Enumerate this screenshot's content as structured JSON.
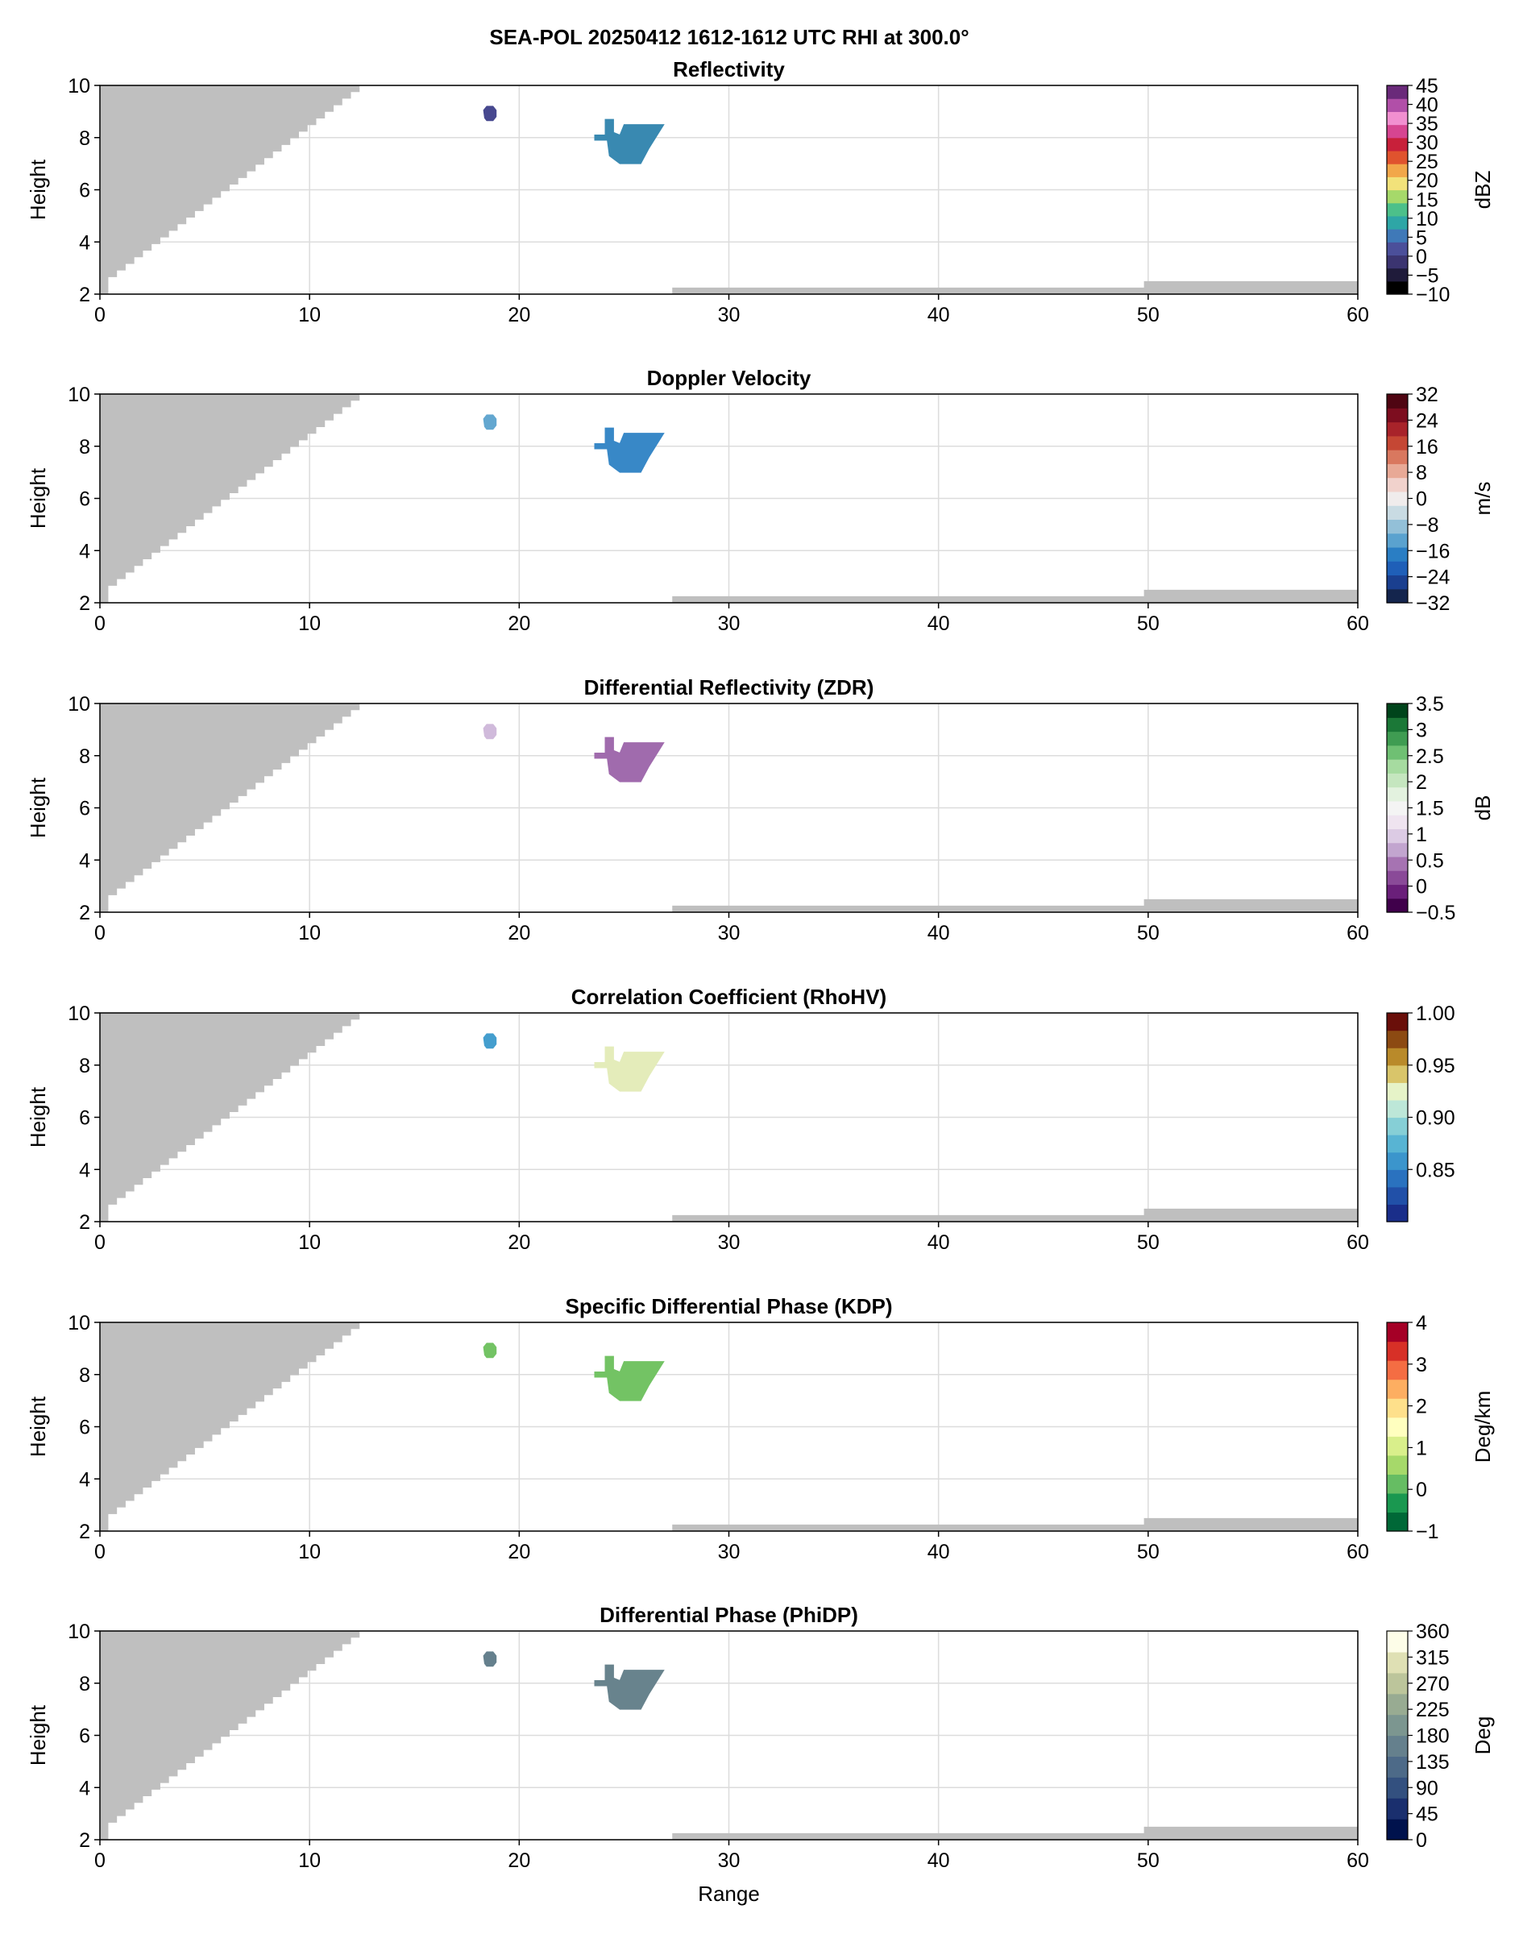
{
  "suptitle": "SEA-POL 20250412 1612-1612 UTC RHI at 300.0°",
  "xlabel": "Range",
  "chart_data": [
    {
      "type": "heatmap",
      "title": "Reflectivity",
      "ylabel": "Height",
      "xlabel": "",
      "xlim": [
        0,
        60
      ],
      "ylim": [
        2,
        10
      ],
      "xticks": [
        0,
        10,
        20,
        30,
        40,
        50,
        60
      ],
      "yticks": [
        2,
        4,
        6,
        8,
        10
      ],
      "grid": true,
      "colorbar": {
        "label": "dBZ",
        "range": [
          -10,
          45
        ],
        "ticks": [
          -10,
          -5,
          0,
          5,
          10,
          15,
          20,
          25,
          30,
          35,
          40,
          45
        ],
        "colors": [
          "#000000",
          "#1f1b3a",
          "#3b3470",
          "#4b4f9a",
          "#3f79b8",
          "#2ea6a6",
          "#4cc08a",
          "#a6d96a",
          "#f2e27a",
          "#f2a74a",
          "#e0532e",
          "#c8203a",
          "#d64591",
          "#f18fd0",
          "#b14fa8",
          "#6a2a7a"
        ]
      },
      "echoes": [
        {
          "x_range": [
            18.3,
            18.9
          ],
          "y_range": [
            8.6,
            9.2
          ],
          "value": 0
        },
        {
          "x_range": [
            23.6,
            27.0
          ],
          "y_range": [
            7.0,
            8.7
          ],
          "value": 6
        }
      ]
    },
    {
      "type": "heatmap",
      "title": "Doppler Velocity",
      "ylabel": "Height",
      "xlabel": "",
      "xlim": [
        0,
        60
      ],
      "ylim": [
        2,
        10
      ],
      "xticks": [
        0,
        10,
        20,
        30,
        40,
        50,
        60
      ],
      "yticks": [
        2,
        4,
        6,
        8,
        10
      ],
      "grid": true,
      "colorbar": {
        "label": "m/s",
        "range": [
          -32,
          32
        ],
        "ticks": [
          -32,
          -24,
          -16,
          -8,
          0,
          8,
          16,
          24,
          32
        ],
        "colors": [
          "#14254d",
          "#1a3f8f",
          "#1f5fb8",
          "#2a7ec4",
          "#5aa2cf",
          "#93c0d8",
          "#c9dbe3",
          "#f0ecec",
          "#f1d2cc",
          "#e8a996",
          "#d9785f",
          "#c54734",
          "#a8232a",
          "#7d0d1f",
          "#4f0512"
        ]
      },
      "echoes": [
        {
          "x_range": [
            18.3,
            18.9
          ],
          "y_range": [
            8.6,
            9.2
          ],
          "value": -13
        },
        {
          "x_range": [
            23.6,
            27.0
          ],
          "y_range": [
            7.0,
            8.7
          ],
          "value": -17
        }
      ]
    },
    {
      "type": "heatmap",
      "title": "Differential Reflectivity (ZDR)",
      "ylabel": "Height",
      "xlabel": "",
      "xlim": [
        0,
        60
      ],
      "ylim": [
        2,
        10
      ],
      "xticks": [
        0,
        10,
        20,
        30,
        40,
        50,
        60
      ],
      "yticks": [
        2,
        4,
        6,
        8,
        10
      ],
      "grid": true,
      "colorbar": {
        "label": "dB",
        "range": [
          -0.5,
          3.5
        ],
        "ticks": [
          -0.5,
          0.0,
          0.5,
          1.0,
          1.5,
          2.0,
          2.5,
          3.0,
          3.5
        ],
        "colors": [
          "#40004b",
          "#6a1f7a",
          "#8a4a98",
          "#a673b2",
          "#c2a5cf",
          "#dccbe4",
          "#efe4f0",
          "#f4f4f4",
          "#e3f2df",
          "#c5e6bf",
          "#a6dba0",
          "#6fc073",
          "#3f9c52",
          "#1b7837",
          "#00441b"
        ]
      },
      "echoes": [
        {
          "x_range": [
            18.3,
            18.9
          ],
          "y_range": [
            8.6,
            9.2
          ],
          "value": 0.8
        },
        {
          "x_range": [
            23.6,
            27.0
          ],
          "y_range": [
            7.0,
            8.7
          ],
          "value": 0.3
        }
      ]
    },
    {
      "type": "heatmap",
      "title": "Correlation Coefficient (RhoHV)",
      "ylabel": "Height",
      "xlabel": "",
      "xlim": [
        0,
        60
      ],
      "ylim": [
        2,
        10
      ],
      "xticks": [
        0,
        10,
        20,
        30,
        40,
        50,
        60
      ],
      "yticks": [
        2,
        4,
        6,
        8,
        10
      ],
      "grid": true,
      "colorbar": {
        "label": "",
        "range": [
          0.8,
          1.0
        ],
        "ticks": [
          0.85,
          0.9,
          0.95,
          1.0
        ],
        "tick_labels": [
          "0.85",
          "0.90",
          "0.95",
          "1.00"
        ],
        "colors": [
          "#1a2e8a",
          "#2150a8",
          "#2a72bf",
          "#3b95cc",
          "#58b4d3",
          "#86cfd6",
          "#bde7d8",
          "#e6f3c8",
          "#d9c56a",
          "#b98a2a",
          "#8c4a12",
          "#6a0f0a"
        ]
      },
      "echoes": [
        {
          "x_range": [
            18.3,
            18.9
          ],
          "y_range": [
            8.6,
            9.2
          ],
          "value": 0.86
        },
        {
          "x_range": [
            23.6,
            27.0
          ],
          "y_range": [
            7.0,
            8.7
          ],
          "value": 0.93
        }
      ]
    },
    {
      "type": "heatmap",
      "title": "Specific Differential Phase (KDP)",
      "ylabel": "Height",
      "xlabel": "",
      "xlim": [
        0,
        60
      ],
      "ylim": [
        2,
        10
      ],
      "xticks": [
        0,
        10,
        20,
        30,
        40,
        50,
        60
      ],
      "yticks": [
        2,
        4,
        6,
        8,
        10
      ],
      "grid": true,
      "colorbar": {
        "label": "Deg/km",
        "range": [
          -1,
          4
        ],
        "ticks": [
          -1,
          0,
          1,
          2,
          3,
          4
        ],
        "colors": [
          "#006837",
          "#1a9850",
          "#66bd63",
          "#a6d96a",
          "#d9ef8b",
          "#ffffbf",
          "#fee08b",
          "#fdae61",
          "#f46d43",
          "#d73027",
          "#a50026"
        ]
      },
      "echoes": [
        {
          "x_range": [
            18.3,
            18.9
          ],
          "y_range": [
            8.6,
            9.2
          ],
          "value": 0.1
        },
        {
          "x_range": [
            23.6,
            27.0
          ],
          "y_range": [
            7.0,
            8.7
          ],
          "value": 0.1
        }
      ]
    },
    {
      "type": "heatmap",
      "title": "Differential Phase (PhiDP)",
      "ylabel": "Height",
      "xlabel": "Range",
      "xlim": [
        0,
        60
      ],
      "ylim": [
        2,
        10
      ],
      "xticks": [
        0,
        10,
        20,
        30,
        40,
        50,
        60
      ],
      "yticks": [
        2,
        4,
        6,
        8,
        10
      ],
      "grid": true,
      "colorbar": {
        "label": "Deg",
        "range": [
          0,
          360
        ],
        "ticks": [
          0,
          45,
          90,
          135,
          180,
          225,
          270,
          315,
          360
        ],
        "colors": [
          "#00124d",
          "#1a2f6e",
          "#33507f",
          "#4d6a88",
          "#65808d",
          "#7c9690",
          "#98ab92",
          "#bcc59b",
          "#dfe0b4",
          "#fdfde8"
        ]
      },
      "echoes": [
        {
          "x_range": [
            18.3,
            18.9
          ],
          "y_range": [
            8.6,
            9.2
          ],
          "value": 160
        },
        {
          "x_range": [
            23.6,
            27.0
          ],
          "y_range": [
            7.0,
            8.7
          ],
          "value": 165
        }
      ]
    }
  ],
  "masks": {
    "color": "#bfbfbf",
    "blind_wedge": [
      [
        0,
        10
      ],
      [
        12.8,
        10
      ],
      [
        0.4,
        2.4
      ],
      [
        0,
        2.4
      ]
    ],
    "ground_clutter": [
      [
        27.3,
        2.0
      ],
      [
        27.3,
        2.25
      ],
      [
        49.8,
        2.25
      ],
      [
        49.8,
        2.5
      ],
      [
        60,
        2.5
      ],
      [
        60,
        2.0
      ]
    ]
  },
  "echo_shapes": {
    "small_blob": [
      [
        18.35,
        8.75
      ],
      [
        18.45,
        8.65
      ],
      [
        18.75,
        8.65
      ],
      [
        18.9,
        8.8
      ],
      [
        18.9,
        9.05
      ],
      [
        18.75,
        9.2
      ],
      [
        18.45,
        9.2
      ],
      [
        18.3,
        9.05
      ]
    ],
    "main_echo": [
      [
        23.6,
        7.9
      ],
      [
        24.2,
        7.9
      ],
      [
        24.3,
        7.3
      ],
      [
        24.8,
        7.0
      ],
      [
        25.8,
        7.0
      ],
      [
        26.2,
        7.6
      ],
      [
        26.9,
        8.5
      ],
      [
        25.0,
        8.5
      ],
      [
        24.8,
        8.1
      ],
      [
        24.5,
        8.2
      ],
      [
        24.5,
        8.7
      ],
      [
        24.1,
        8.7
      ],
      [
        24.1,
        8.1
      ],
      [
        23.6,
        8.1
      ]
    ]
  }
}
